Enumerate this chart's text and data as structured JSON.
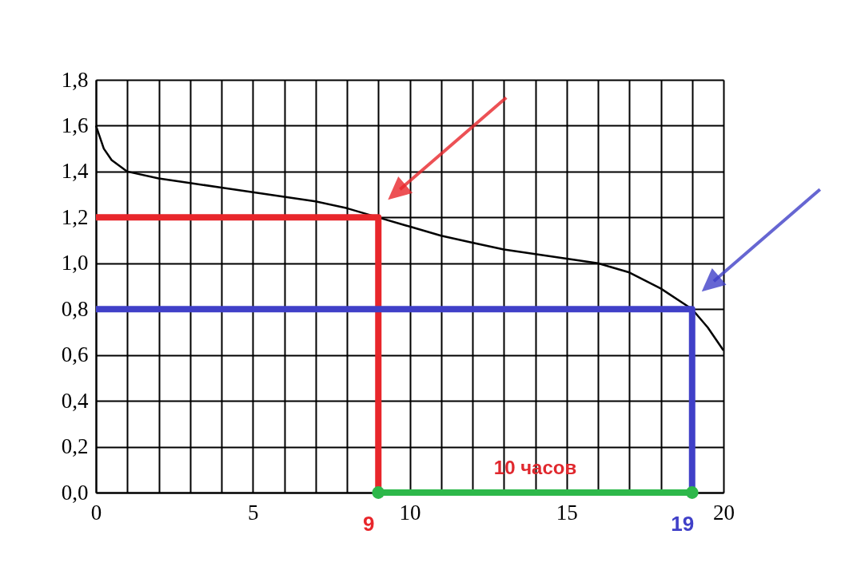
{
  "chart_data": {
    "type": "line",
    "x": [
      0,
      0.25,
      0.5,
      1,
      2,
      3,
      4,
      5,
      6,
      7,
      8,
      9,
      10,
      11,
      12,
      13,
      14,
      15,
      16,
      17,
      18,
      19,
      19.5,
      20
    ],
    "series": [
      {
        "color": "#000000",
        "values": [
          1.6,
          1.5,
          1.45,
          1.4,
          1.37,
          1.35,
          1.33,
          1.31,
          1.29,
          1.27,
          1.24,
          1.2,
          1.16,
          1.12,
          1.09,
          1.06,
          1.04,
          1.02,
          1.0,
          0.96,
          0.89,
          0.8,
          0.72,
          0.62
        ]
      },
      {
        "color": "#e8262b",
        "x": [
          0,
          9,
          9
        ],
        "values": [
          1.2,
          1.2,
          0
        ]
      },
      {
        "color": "#4040c8",
        "x": [
          0,
          19,
          19
        ],
        "values": [
          0.8,
          0.8,
          0
        ]
      },
      {
        "color": "#2db84a",
        "x": [
          9,
          19
        ],
        "values": [
          0,
          0
        ],
        "marker": "circle"
      }
    ],
    "annotations": [
      {
        "text": "10 часов",
        "x": 14,
        "y": 0
      },
      {
        "text": "9",
        "x": 9,
        "y": 0
      },
      {
        "text": "19",
        "x": 19,
        "y": 0
      }
    ],
    "xlim": [
      0,
      20
    ],
    "ylim": [
      0,
      1.8
    ],
    "xticks": [
      0,
      {
        "value": 1,
        "label": null
      },
      {
        "value": 2,
        "label": null
      },
      {
        "value": 3,
        "label": null
      },
      {
        "value": 4,
        "label": null
      },
      5,
      {
        "value": 6,
        "label": null
      },
      {
        "value": 7,
        "label": null
      },
      {
        "value": 8,
        "label": null
      },
      {
        "value": 9,
        "label": null
      },
      10,
      {
        "value": 11,
        "label": null
      },
      {
        "value": 12,
        "label": null
      },
      {
        "value": 13,
        "label": null
      },
      {
        "value": 14,
        "label": null
      },
      15,
      {
        "value": 16,
        "label": null
      },
      {
        "value": 17,
        "label": null
      },
      {
        "value": 18,
        "label": null
      },
      {
        "value": 19,
        "label": null
      },
      20
    ],
    "yticks": [
      {
        "value": 0,
        "label": "0,0"
      },
      {
        "value": 0.2,
        "label": "0,2"
      },
      {
        "value": 0.4,
        "label": "0,4"
      },
      {
        "value": 0.6,
        "label": "0,6"
      },
      {
        "value": 0.8,
        "label": "0,8"
      },
      {
        "value": 1,
        "label": "1,0"
      },
      {
        "value": 1.2,
        "label": "1,2"
      },
      {
        "value": 1.4,
        "label": "1,4"
      },
      {
        "value": 1.6,
        "label": "1,6"
      },
      {
        "value": 1.8,
        "label": "1,8"
      }
    ],
    "grid": true,
    "marker": "none"
  }
}
